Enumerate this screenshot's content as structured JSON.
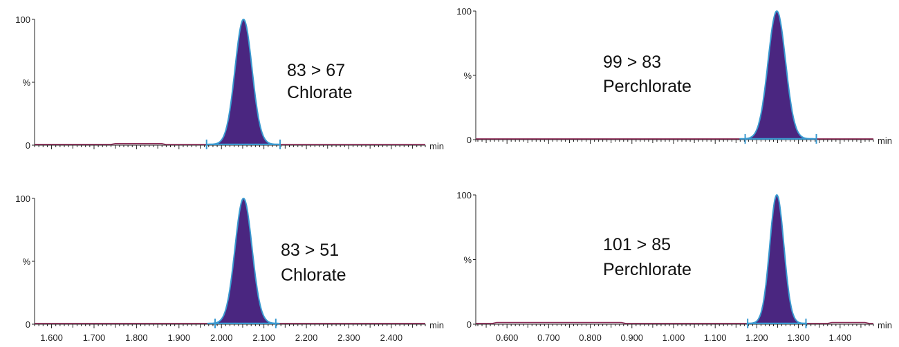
{
  "chart_data": [
    {
      "type": "line",
      "transition": "83 > 67",
      "compound": "Chlorate",
      "y_axis": {
        "top": "100",
        "mid": "%",
        "bottom": "0"
      },
      "x_unit": "min",
      "xlim": [
        1.56,
        2.48
      ],
      "ylim": [
        0,
        100
      ],
      "x_tick_labels": [],
      "peak": {
        "rt": 2.052,
        "height": 100,
        "sigma": 0.02
      },
      "integration_window": [
        1.965,
        2.138
      ],
      "baseline": [
        {
          "x": 1.56,
          "y": 0.6
        },
        {
          "x": 1.74,
          "y": 0.6
        },
        {
          "x": 1.75,
          "y": 1.2
        },
        {
          "x": 1.86,
          "y": 1.2
        },
        {
          "x": 1.87,
          "y": 0.5
        },
        {
          "x": 2.48,
          "y": 0.5
        }
      ],
      "colors": {
        "fill": "#4a2680",
        "outline": "#3a9ad0",
        "baseline": "#8b2a56",
        "axis": "#222222"
      }
    },
    {
      "type": "line",
      "transition": "99 > 83",
      "compound": "Perchlorate",
      "y_axis": {
        "top": "100",
        "mid": "%",
        "bottom": "0"
      },
      "x_unit": "min",
      "xlim": [
        0.525,
        1.48
      ],
      "ylim": [
        0,
        100
      ],
      "x_tick_labels": [],
      "peak": {
        "rt": 1.248,
        "height": 100,
        "sigma": 0.021
      },
      "integration_window": [
        1.172,
        1.343
      ],
      "baseline": [
        {
          "x": 0.525,
          "y": 0.6
        },
        {
          "x": 1.48,
          "y": 0.6
        }
      ],
      "colors": {
        "fill": "#4a2680",
        "outline": "#3a9ad0",
        "baseline": "#8b2a56",
        "axis": "#222222"
      }
    },
    {
      "type": "line",
      "transition": "83 > 51",
      "compound": "Chlorate",
      "y_axis": {
        "top": "100",
        "mid": "%",
        "bottom": "0"
      },
      "x_unit": "min",
      "xlim": [
        1.56,
        2.48
      ],
      "ylim": [
        0,
        100
      ],
      "x_tick_labels": [
        "1.600",
        "1.700",
        "1.800",
        "1.900",
        "2.000",
        "2.100",
        "2.200",
        "2.300",
        "2.400"
      ],
      "peak": {
        "rt": 2.052,
        "height": 100,
        "sigma": 0.02
      },
      "integration_window": [
        1.985,
        2.128
      ],
      "baseline": [
        {
          "x": 1.56,
          "y": 0.6
        },
        {
          "x": 2.48,
          "y": 0.6
        }
      ],
      "colors": {
        "fill": "#4a2680",
        "outline": "#3a9ad0",
        "baseline": "#8b2a56",
        "axis": "#222222"
      }
    },
    {
      "type": "line",
      "transition": "101 > 85",
      "compound": "Perchlorate",
      "y_axis": {
        "top": "100",
        "mid": "%",
        "bottom": "0"
      },
      "x_unit": "min",
      "xlim": [
        0.525,
        1.48
      ],
      "ylim": [
        0,
        100
      ],
      "x_tick_labels": [
        "0.600",
        "0.700",
        "0.800",
        "0.900",
        "1.000",
        "1.100",
        "1.200",
        "1.300",
        "1.400"
      ],
      "peak": {
        "rt": 1.248,
        "height": 100,
        "sigma": 0.017
      },
      "integration_window": [
        1.178,
        1.318
      ],
      "baseline": [
        {
          "x": 0.525,
          "y": 0.6
        },
        {
          "x": 0.565,
          "y": 0.6
        },
        {
          "x": 0.575,
          "y": 1.3
        },
        {
          "x": 0.875,
          "y": 1.3
        },
        {
          "x": 0.885,
          "y": 0.6
        },
        {
          "x": 1.37,
          "y": 0.6
        },
        {
          "x": 1.38,
          "y": 1.3
        },
        {
          "x": 1.46,
          "y": 1.3
        },
        {
          "x": 1.47,
          "y": 0.6
        },
        {
          "x": 1.48,
          "y": 0.6
        }
      ],
      "colors": {
        "fill": "#4a2680",
        "outline": "#3a9ad0",
        "baseline": "#8b2a56",
        "axis": "#222222"
      }
    }
  ]
}
